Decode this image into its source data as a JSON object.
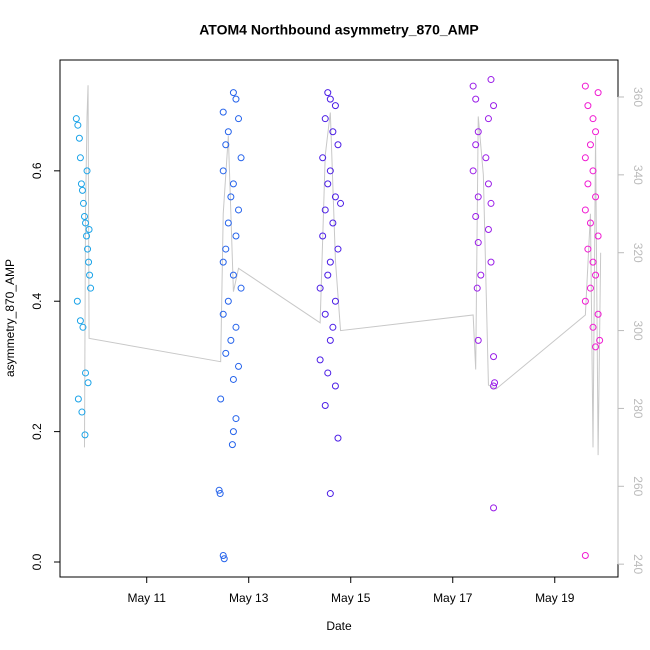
{
  "chart_data": {
    "type": "scatter",
    "title": "ATOM4 Northbound asymmetry_870_AMP",
    "x_label": "Date",
    "y_label": "asymmetry_870_AMP",
    "xlim": [
      9.3,
      20.24
    ],
    "xticks": [
      {
        "value": 11,
        "label": "May 11"
      },
      {
        "value": 13,
        "label": "May 13"
      },
      {
        "value": 15,
        "label": "May 15"
      },
      {
        "value": 17,
        "label": "May 17"
      },
      {
        "value": 19,
        "label": "May 19"
      }
    ],
    "ylim": [
      -0.023,
      0.77
    ],
    "yticks": [
      {
        "value": 0,
        "label": "0.0"
      },
      0.2,
      0.4,
      0.6
    ],
    "y2lim": [
      236.7,
      369.5
    ],
    "y2ticks": [
      240,
      260,
      280,
      300,
      320,
      340,
      360
    ],
    "series": [
      {
        "type": "line",
        "axis": "y2",
        "color": "#c8c8c8",
        "x": [
          9.78,
          9.8,
          9.83,
          9.85,
          9.87,
          12.45,
          12.5,
          12.6,
          12.7,
          12.8,
          14.4,
          14.5,
          14.6,
          14.7,
          14.8,
          17.4,
          17.45,
          17.5,
          17.6,
          17.7,
          17.85,
          19.6,
          19.7,
          19.75,
          19.8,
          19.85,
          19.9
        ],
        "values": [
          270,
          330,
          355,
          363,
          298,
          292,
          330,
          350,
          310,
          316,
          302,
          345,
          356,
          318,
          300,
          304,
          290,
          355,
          340,
          286,
          285,
          304,
          330,
          270,
          350,
          268,
          320
        ]
      },
      {
        "type": "scatter",
        "color": "#1aa3e8",
        "x": [
          9.62,
          9.65,
          9.68,
          9.7,
          9.72,
          9.74,
          9.76,
          9.78,
          9.8,
          9.82,
          9.84,
          9.86,
          9.88,
          9.9,
          9.64,
          9.7,
          9.75,
          9.8,
          9.85,
          9.66,
          9.73,
          9.79,
          9.83,
          9.87
        ],
        "values": [
          0.68,
          0.67,
          0.65,
          0.62,
          0.58,
          0.57,
          0.55,
          0.53,
          0.52,
          0.5,
          0.48,
          0.46,
          0.44,
          0.42,
          0.4,
          0.37,
          0.36,
          0.29,
          0.275,
          0.25,
          0.23,
          0.195,
          0.6,
          0.51
        ]
      },
      {
        "type": "scatter",
        "color": "#2563eb",
        "x": [
          12.7,
          12.75,
          12.5,
          12.8,
          12.6,
          12.55,
          12.85,
          12.5,
          12.7,
          12.65,
          12.8,
          12.6,
          12.75,
          12.55,
          12.5,
          12.7,
          12.85,
          12.6,
          12.5,
          12.75,
          12.65,
          12.55,
          12.8,
          12.7,
          12.45,
          12.75,
          12.7,
          12.68,
          12.42,
          12.44,
          12.5,
          12.52
        ],
        "values": [
          0.72,
          0.71,
          0.69,
          0.68,
          0.66,
          0.64,
          0.62,
          0.6,
          0.58,
          0.56,
          0.54,
          0.52,
          0.5,
          0.48,
          0.46,
          0.44,
          0.42,
          0.4,
          0.38,
          0.36,
          0.34,
          0.32,
          0.3,
          0.28,
          0.25,
          0.22,
          0.2,
          0.18,
          0.11,
          0.105,
          0.01,
          0.005
        ]
      },
      {
        "type": "scatter",
        "color": "#4b1de6",
        "x": [
          14.55,
          14.6,
          14.7,
          14.5,
          14.65,
          14.75,
          14.45,
          14.6,
          14.55,
          14.7,
          14.8,
          14.5,
          14.65,
          14.45,
          14.75,
          14.6,
          14.55,
          14.4,
          14.7,
          14.5,
          14.65,
          14.6,
          14.4,
          14.55,
          14.7,
          14.5,
          14.75,
          14.6
        ],
        "values": [
          0.72,
          0.71,
          0.7,
          0.68,
          0.66,
          0.64,
          0.62,
          0.6,
          0.58,
          0.56,
          0.55,
          0.54,
          0.52,
          0.5,
          0.48,
          0.46,
          0.44,
          0.42,
          0.4,
          0.38,
          0.36,
          0.34,
          0.31,
          0.29,
          0.27,
          0.24,
          0.19,
          0.105
        ]
      },
      {
        "type": "scatter",
        "color": "#9a1ee8",
        "x": [
          17.75,
          17.4,
          17.45,
          17.8,
          17.7,
          17.5,
          17.45,
          17.65,
          17.4,
          17.7,
          17.5,
          17.75,
          17.45,
          17.7,
          17.5,
          17.75,
          17.55,
          17.48,
          17.5,
          17.8,
          17.82,
          17.8,
          17.8
        ],
        "values": [
          0.74,
          0.73,
          0.71,
          0.7,
          0.68,
          0.66,
          0.64,
          0.62,
          0.6,
          0.58,
          0.56,
          0.55,
          0.53,
          0.51,
          0.49,
          0.46,
          0.44,
          0.42,
          0.34,
          0.315,
          0.275,
          0.27,
          0.083
        ]
      },
      {
        "type": "scatter",
        "color": "#f01ad2",
        "x": [
          19.6,
          19.85,
          19.65,
          19.75,
          19.8,
          19.7,
          19.6,
          19.75,
          19.65,
          19.8,
          19.6,
          19.7,
          19.85,
          19.65,
          19.75,
          19.8,
          19.7,
          19.6,
          19.85,
          19.75,
          19.8,
          19.88,
          19.6
        ],
        "values": [
          0.73,
          0.72,
          0.7,
          0.68,
          0.66,
          0.64,
          0.62,
          0.6,
          0.58,
          0.56,
          0.54,
          0.52,
          0.5,
          0.48,
          0.46,
          0.44,
          0.42,
          0.4,
          0.38,
          0.36,
          0.33,
          0.34,
          0.01
        ]
      }
    ]
  }
}
